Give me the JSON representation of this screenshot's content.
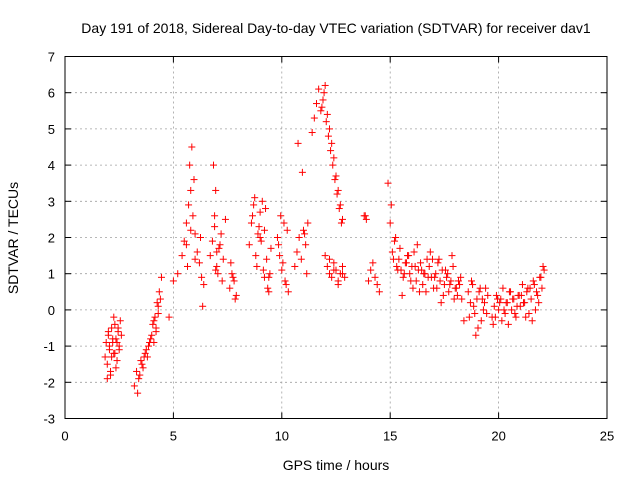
{
  "chart_data": {
    "type": "scatter",
    "title": "Day 191 of 2018, Sidereal Day-to-day VTEC variation (SDTVAR) for receiver dav1",
    "xlabel": "GPS time / hours",
    "ylabel": "SDTVAR / TECUs",
    "xlim": [
      0,
      25
    ],
    "ylim": [
      -3,
      7
    ],
    "xticks": [
      "0",
      "5",
      "10",
      "15",
      "20",
      "25"
    ],
    "yticks": [
      "-3",
      "-2",
      "-1",
      "0",
      "1",
      "2",
      "3",
      "4",
      "5",
      "6",
      "7"
    ],
    "grid": true,
    "marker": "+",
    "color": "#ff0000",
    "series": [
      {
        "name": "dav1",
        "x": [
          1.85,
          1.9,
          1.95,
          2.0,
          2.05,
          2.1,
          2.15,
          2.2,
          2.25,
          2.3,
          2.35,
          2.4,
          2.45,
          2.5,
          2.55,
          2.6,
          1.95,
          2.05,
          2.15,
          2.25,
          2.35,
          2.45,
          2.5,
          2.0,
          2.1,
          2.2,
          2.3,
          2.4,
          3.2,
          3.3,
          3.4,
          3.5,
          3.6,
          3.7,
          3.8,
          3.9,
          4.0,
          4.1,
          4.2,
          4.3,
          4.4,
          3.35,
          3.55,
          3.75,
          3.95,
          4.15,
          4.35,
          3.45,
          3.65,
          3.85,
          4.05,
          4.25,
          4.45,
          4.2,
          4.3,
          4.1,
          4.8,
          5.0,
          5.2,
          5.4,
          5.5,
          5.6,
          5.7,
          5.8,
          5.9,
          6.0,
          6.1,
          6.2,
          6.3,
          6.4,
          5.65,
          5.75,
          5.85,
          5.95,
          5.6,
          5.8,
          6.0,
          6.25,
          6.35,
          6.7,
          6.8,
          6.9,
          7.0,
          7.1,
          7.2,
          7.3,
          7.4,
          6.85,
          6.95,
          7.05,
          7.15,
          7.25,
          6.9,
          7.0,
          6.95,
          7.6,
          7.7,
          7.8,
          7.9,
          7.65,
          7.75,
          7.85,
          8.5,
          8.6,
          8.7,
          8.8,
          8.9,
          9.0,
          9.1,
          9.2,
          9.3,
          9.4,
          9.5,
          8.65,
          8.85,
          9.05,
          9.25,
          9.45,
          8.75,
          8.95,
          9.15,
          9.35,
          9.2,
          9.4,
          9.0,
          9.8,
          9.9,
          10.0,
          10.1,
          10.2,
          10.3,
          9.85,
          9.95,
          10.05,
          10.15,
          10.25,
          10.6,
          10.7,
          10.8,
          10.9,
          11.0,
          11.1,
          11.2,
          10.75,
          10.95,
          11.05,
          11.15,
          11.4,
          11.5,
          11.6,
          11.7,
          11.8,
          11.9,
          12.0,
          12.1,
          12.2,
          12.3,
          12.4,
          12.5,
          12.6,
          12.7,
          12.8,
          11.85,
          11.95,
          12.05,
          12.15,
          12.25,
          12.35,
          12.45,
          12.55,
          12.65,
          12.75,
          12.0,
          12.1,
          12.2,
          12.3,
          12.4,
          12.5,
          12.6,
          12.7,
          12.8,
          12.9,
          12.2,
          12.4,
          12.6,
          12.8,
          13.8,
          13.9,
          14.0,
          14.1,
          14.2,
          14.3,
          14.4,
          14.5,
          13.85,
          14.9,
          15.0,
          15.1,
          15.2,
          15.3,
          15.4,
          15.5,
          15.6,
          15.7,
          15.8,
          15.9,
          16.0,
          16.1,
          16.2,
          16.3,
          16.4,
          16.5,
          16.6,
          16.7,
          16.8,
          16.9,
          17.0,
          17.1,
          17.2,
          17.3,
          17.4,
          17.5,
          17.6,
          17.7,
          17.8,
          17.9,
          18.0,
          18.1,
          18.2,
          18.3,
          18.4,
          15.05,
          15.25,
          15.45,
          15.65,
          15.85,
          16.05,
          16.25,
          16.45,
          16.65,
          16.85,
          17.05,
          17.25,
          17.45,
          17.65,
          17.85,
          18.05,
          18.25,
          15.15,
          15.35,
          15.55,
          15.75,
          15.95,
          16.15,
          16.35,
          16.55,
          16.75,
          16.95,
          17.15,
          17.35,
          17.55,
          17.75,
          17.95,
          18.15,
          18.6,
          18.7,
          18.8,
          18.9,
          19.0,
          19.1,
          19.2,
          19.3,
          19.4,
          19.5,
          18.65,
          18.85,
          19.05,
          19.25,
          19.45,
          18.75,
          18.95,
          19.15,
          19.35,
          19.7,
          19.8,
          19.9,
          20.0,
          20.1,
          20.2,
          20.3,
          20.4,
          20.5,
          20.6,
          20.7,
          20.8,
          20.9,
          21.0,
          21.1,
          21.2,
          21.3,
          21.4,
          21.5,
          21.6,
          21.7,
          21.8,
          21.9,
          22.0,
          22.1,
          19.75,
          19.95,
          20.15,
          20.35,
          20.55,
          20.75,
          20.95,
          21.15,
          21.35,
          21.55,
          21.75,
          21.95,
          19.85,
          20.05,
          20.25,
          20.45,
          20.65,
          20.85,
          21.05,
          21.25,
          21.45,
          21.65,
          21.85,
          22.05
        ],
        "y": [
          -1.3,
          -0.9,
          -1.5,
          -0.7,
          -1.1,
          -1.7,
          -0.5,
          -0.9,
          -1.2,
          -0.4,
          -0.8,
          -1.4,
          -0.6,
          -1.0,
          -0.3,
          -0.7,
          -1.9,
          -1.0,
          -1.3,
          -0.2,
          -1.6,
          -0.5,
          -1.1,
          -0.6,
          -1.8,
          -0.8,
          -1.2,
          -0.9,
          -2.1,
          -1.7,
          -1.9,
          -1.4,
          -1.6,
          -1.2,
          -1.3,
          -0.9,
          -0.7,
          -0.3,
          -0.5,
          0.1,
          0.3,
          -2.3,
          -1.5,
          -1.1,
          -0.8,
          -0.2,
          0.5,
          -1.8,
          -1.3,
          -1.0,
          -0.4,
          0.2,
          0.9,
          -0.6,
          -0.1,
          -0.9,
          -0.2,
          0.8,
          1.0,
          1.5,
          1.9,
          2.4,
          2.9,
          3.3,
          2.6,
          2.1,
          1.6,
          1.3,
          0.9,
          0.7,
          1.2,
          4.0,
          4.5,
          3.6,
          1.8,
          2.2,
          1.4,
          2.0,
          0.1,
          1.5,
          1.9,
          2.3,
          1.2,
          1.7,
          2.1,
          1.4,
          2.5,
          4.0,
          3.3,
          1.0,
          1.8,
          0.8,
          2.6,
          1.6,
          1.1,
          0.6,
          1.0,
          0.8,
          0.4,
          1.3,
          0.9,
          0.3,
          1.8,
          2.4,
          2.9,
          1.5,
          2.1,
          2.7,
          3.0,
          2.2,
          1.4,
          0.9,
          1.7,
          2.6,
          1.2,
          1.9,
          2.8,
          1.0,
          3.1,
          2.3,
          1.1,
          0.6,
          0.9,
          0.5,
          2.0,
          2.0,
          1.5,
          1.1,
          2.4,
          0.7,
          0.5,
          1.8,
          2.6,
          1.3,
          0.8,
          2.2,
          1.2,
          1.6,
          2.0,
          1.4,
          2.2,
          1.8,
          2.4,
          4.6,
          3.8,
          2.1,
          1.0,
          4.9,
          5.3,
          5.7,
          6.1,
          5.5,
          5.8,
          6.2,
          5.4,
          5.0,
          4.6,
          4.2,
          3.7,
          3.3,
          2.9,
          2.5,
          5.6,
          6.0,
          5.2,
          4.8,
          4.4,
          4.0,
          3.6,
          3.2,
          2.8,
          2.4,
          1.5,
          1.2,
          1.0,
          0.9,
          1.3,
          1.1,
          0.8,
          1.0,
          1.2,
          0.9,
          1.4,
          1.1,
          0.7,
          1.0,
          2.6,
          2.5,
          0.8,
          1.1,
          1.3,
          0.9,
          0.7,
          0.5,
          2.6,
          3.5,
          2.4,
          1.6,
          1.9,
          1.2,
          1.4,
          1.1,
          0.9,
          1.3,
          1.5,
          1.0,
          1.2,
          1.6,
          0.8,
          1.1,
          1.3,
          0.7,
          1.0,
          1.4,
          1.2,
          0.9,
          0.6,
          1.0,
          1.3,
          0.8,
          1.1,
          0.7,
          0.9,
          0.5,
          0.8,
          1.2,
          0.6,
          0.4,
          0.7,
          0.3,
          -0.3,
          2.9,
          2.0,
          1.7,
          1.0,
          1.5,
          0.6,
          1.8,
          1.1,
          0.5,
          1.6,
          0.9,
          1.4,
          0.4,
          1.0,
          1.5,
          0.6,
          0.9,
          1.4,
          1.1,
          0.4,
          1.3,
          0.8,
          1.2,
          0.5,
          1.0,
          0.9,
          1.4,
          0.6,
          0.2,
          1.1,
          0.7,
          0.3,
          0.8,
          0.5,
          0.2,
          0.7,
          -0.1,
          0.3,
          0.5,
          -0.3,
          0.0,
          0.6,
          0.4,
          -0.2,
          0.1,
          -0.5,
          0.3,
          -0.1,
          0.8,
          -0.7,
          0.6,
          0.2,
          -0.2,
          0.1,
          0.4,
          0.0,
          0.3,
          0.6,
          -0.1,
          0.2,
          0.5,
          0.0,
          0.3,
          -0.2,
          0.4,
          0.1,
          0.7,
          0.2,
          0.5,
          -0.1,
          0.3,
          0.8,
          0.0,
          0.4,
          0.9,
          0.6,
          1.1,
          -0.4,
          0.3,
          -0.3,
          0.2,
          0.5,
          -0.1,
          0.4,
          0.2,
          0.6,
          -0.3,
          0.5,
          0.9,
          -0.2,
          0.2,
          0.0,
          -0.4,
          0.3,
          0.1,
          0.4,
          -0.2,
          0.6,
          0.7,
          0.2,
          1.2
        ]
      }
    ]
  }
}
